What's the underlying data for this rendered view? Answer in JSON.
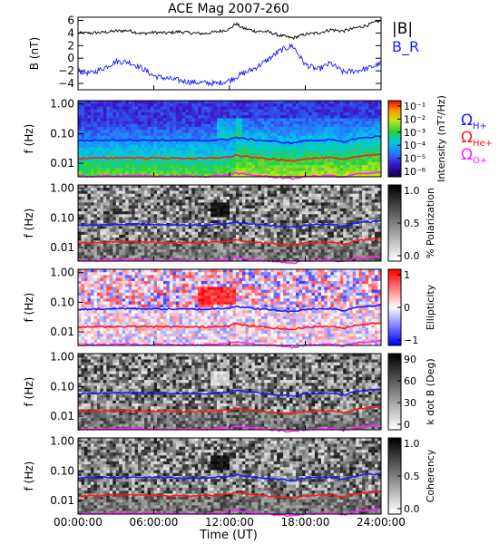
{
  "chart_data": {
    "title": "ACE Mag 2007-260",
    "xlabel": "Time (UT)",
    "x_ticks": [
      "00:00:00",
      "06:00:00",
      "12:00:00",
      "18:00:00",
      "24:00:00"
    ],
    "xlim_hours": [
      0,
      24
    ],
    "panels": [
      {
        "type": "line",
        "ylabel": "B (nT)",
        "ylim": [
          -5,
          6.5
        ],
        "y_ticks": [
          6,
          4,
          2,
          0,
          -2,
          -4
        ],
        "legend": [
          {
            "label": "|B|",
            "color": "#000000"
          },
          {
            "label": "B_R",
            "color": "#1a1aff"
          }
        ],
        "series": [
          {
            "name": "|B|",
            "color": "#000000",
            "x": [
              0,
              1,
              2,
              3,
              4,
              5,
              6,
              7,
              8,
              9,
              10,
              11,
              12,
              12.5,
              13,
              14,
              15,
              16,
              17,
              18,
              19,
              20,
              21,
              22,
              23,
              24
            ],
            "y": [
              4.0,
              4.0,
              4.1,
              4.3,
              4.4,
              3.9,
              4.1,
              4.0,
              4.2,
              4.0,
              3.9,
              4.2,
              4.6,
              5.5,
              4.8,
              4.3,
              4.2,
              3.6,
              3.2,
              3.8,
              4.0,
              4.5,
              4.3,
              4.8,
              5.3,
              6.0
            ]
          },
          {
            "name": "B_R",
            "color": "#1a1aff",
            "x": [
              0,
              1,
              2,
              3,
              4,
              5,
              6,
              7,
              8,
              9,
              10,
              11,
              12,
              12.5,
              13,
              14,
              15,
              16,
              17,
              18,
              19,
              20,
              21,
              22,
              23,
              24
            ],
            "y": [
              -2.0,
              -2.4,
              -1.6,
              -0.5,
              -0.6,
              -1.5,
              -2.8,
              -3.2,
              -3.5,
              -3.8,
              -3.9,
              -4.0,
              -3.5,
              -3.0,
              -2.5,
              -1.6,
              -0.3,
              1.2,
              2.0,
              -1.0,
              -1.8,
              -0.8,
              -2.2,
              -2.0,
              -1.6,
              -0.8
            ]
          }
        ]
      },
      {
        "type": "heatmap",
        "name": "intensity",
        "ylabel": "f (Hz)",
        "y_ticks": [
          "1.00",
          "0.10",
          "0.01"
        ],
        "colorbar": {
          "label": "Intensity (nT²/Hz)",
          "ticks": [
            "10⁻¹",
            "10⁻²",
            "10⁻³",
            "10⁻⁴",
            "10⁻⁵",
            "10⁻⁶"
          ],
          "scale": "rainbow"
        },
        "legend": [
          {
            "label": "ΩH+",
            "color": "#1a1aff"
          },
          {
            "label": "ΩHe+",
            "color": "#ff1a1a"
          },
          {
            "label": "ΩO+",
            "color": "#ff22ff"
          }
        ]
      },
      {
        "type": "heatmap",
        "name": "polarization",
        "ylabel": "f (Hz)",
        "y_ticks": [
          "1.00",
          "0.10",
          "0.01"
        ],
        "colorbar": {
          "label": "% Polarization",
          "ticks": [
            "1.0",
            "0.5",
            "0.0"
          ],
          "scale": "gray"
        }
      },
      {
        "type": "heatmap",
        "name": "ellipticity",
        "ylabel": "f (Hz)",
        "y_ticks": [
          "1.00",
          "0.10",
          "0.01"
        ],
        "colorbar": {
          "label": "Ellipticity",
          "ticks": [
            "1",
            "0",
            "−1"
          ],
          "scale": "bwr"
        }
      },
      {
        "type": "heatmap",
        "name": "kdotb",
        "ylabel": "f (Hz)",
        "y_ticks": [
          "1.00",
          "0.10",
          "0.01"
        ],
        "colorbar": {
          "label": "k dot B (Deg)",
          "ticks": [
            "90",
            "60",
            "30",
            "0"
          ],
          "scale": "gray"
        }
      },
      {
        "type": "heatmap",
        "name": "coherency",
        "ylabel": "f (Hz)",
        "y_ticks": [
          "1.00",
          "0.10",
          "0.01"
        ],
        "colorbar": {
          "label": "Coherency",
          "ticks": [
            "1.0",
            "0.5",
            "0.0"
          ],
          "scale": "gray"
        }
      }
    ],
    "gyrofrequency_overlays": {
      "x_hours": [
        0,
        2,
        4,
        6,
        8,
        10,
        12,
        12.5,
        13,
        14,
        16,
        17,
        18,
        20,
        21,
        22,
        24
      ],
      "omega_H_hz": [
        0.058,
        0.06,
        0.062,
        0.06,
        0.059,
        0.058,
        0.065,
        0.075,
        0.068,
        0.062,
        0.052,
        0.048,
        0.058,
        0.062,
        0.052,
        0.068,
        0.082
      ],
      "omega_He_hz": [
        0.0145,
        0.015,
        0.0155,
        0.015,
        0.0148,
        0.0145,
        0.0163,
        0.019,
        0.017,
        0.0155,
        0.013,
        0.012,
        0.0145,
        0.0155,
        0.013,
        0.017,
        0.0205
      ],
      "omega_O_hz": [
        0.0036,
        0.0037,
        0.0039,
        0.0037,
        0.0037,
        0.0036,
        0.0041,
        0.0047,
        0.0043,
        0.0039,
        0.0033,
        0.003,
        0.0036,
        0.0039,
        0.0033,
        0.0043,
        0.0051
      ]
    }
  }
}
